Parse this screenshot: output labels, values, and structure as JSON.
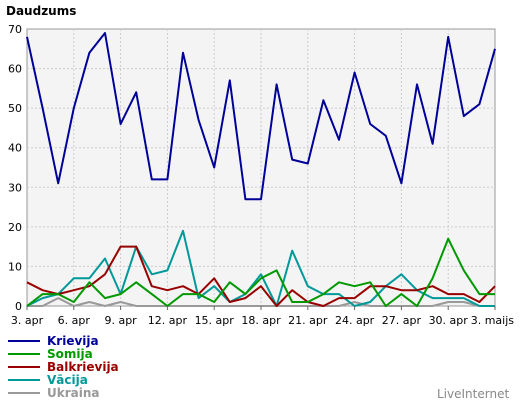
{
  "chart_data": {
    "type": "line",
    "title": "Daudzums",
    "ylim": [
      0,
      70
    ],
    "y_ticks": [
      "0",
      "10",
      "20",
      "30",
      "40",
      "50",
      "60",
      "70"
    ],
    "x_tick_labels": [
      "3. apr",
      "6. apr",
      "9. apr",
      "12. apr",
      "15. apr",
      "18. apr",
      "21. apr",
      "24. apr",
      "27. apr",
      "30. apr",
      "3. maijs"
    ],
    "grid": true,
    "legend_position": "bottom-left",
    "x": [
      "3. apr",
      "4. apr",
      "5. apr",
      "6. apr",
      "7. apr",
      "8. apr",
      "9. apr",
      "10. apr",
      "11. apr",
      "12. apr",
      "13. apr",
      "14. apr",
      "15. apr",
      "16. apr",
      "17. apr",
      "18. apr",
      "19. apr",
      "20. apr",
      "21. apr",
      "22. apr",
      "23. apr",
      "24. apr",
      "25. apr",
      "26. apr",
      "27. apr",
      "28. apr",
      "29. apr",
      "30. apr",
      "1. maijs",
      "2. maijs",
      "3. maijs"
    ],
    "series": [
      {
        "name": "Krievija",
        "color": "#000099",
        "values": [
          68,
          50,
          31,
          50,
          64,
          69,
          46,
          54,
          32,
          32,
          64,
          47,
          35,
          57,
          27,
          27,
          56,
          37,
          36,
          52,
          42,
          59,
          46,
          43,
          31,
          56,
          41,
          68,
          48,
          51,
          65
        ]
      },
      {
        "name": "Somija",
        "color": "#009900",
        "values": [
          0,
          3,
          3,
          1,
          6,
          2,
          3,
          6,
          3,
          0,
          3,
          3,
          1,
          6,
          3,
          7,
          9,
          1,
          1,
          3,
          6,
          5,
          6,
          0,
          3,
          0,
          7,
          17,
          9,
          3,
          3
        ]
      },
      {
        "name": "Balkrievija",
        "color": "#990000",
        "values": [
          6,
          4,
          3,
          4,
          5,
          8,
          15,
          15,
          5,
          4,
          5,
          3,
          7,
          1,
          2,
          5,
          0,
          4,
          1,
          0,
          2,
          2,
          5,
          5,
          4,
          4,
          5,
          3,
          3,
          1,
          5
        ]
      },
      {
        "name": "Vācija",
        "color": "#009999",
        "values": [
          0,
          2,
          3,
          7,
          7,
          12,
          3,
          15,
          8,
          9,
          19,
          2,
          5,
          1,
          3,
          8,
          0,
          14,
          5,
          3,
          3,
          0,
          1,
          5,
          8,
          4,
          2,
          2,
          2,
          0,
          0
        ]
      },
      {
        "name": "Ukraina",
        "color": "#999999",
        "values": [
          0,
          0,
          2,
          0,
          1,
          0,
          1,
          0,
          0,
          0,
          0,
          0,
          0,
          0,
          0,
          0,
          0,
          0,
          0,
          0,
          0,
          1,
          0,
          0,
          0,
          0,
          0,
          1,
          1,
          0,
          0
        ]
      }
    ]
  },
  "branding": "LiveInternet"
}
